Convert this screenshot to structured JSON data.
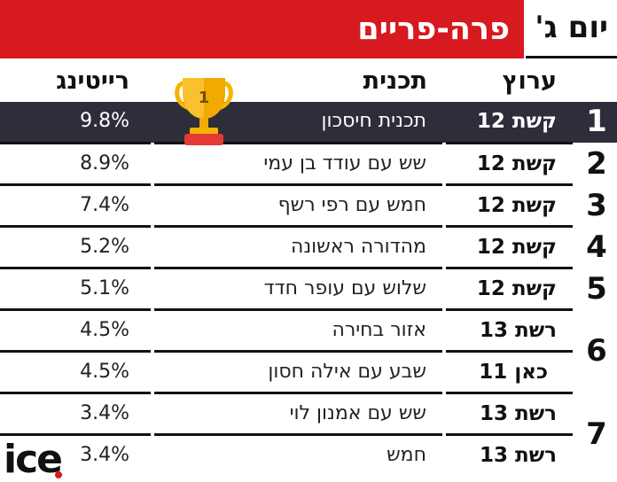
{
  "header": {
    "title": "פרה-פריים",
    "day": "יום ג'"
  },
  "columns": {
    "channel": "ערוץ",
    "program": "תכנית",
    "rating": "רייטינג"
  },
  "trophy": {
    "number": "1"
  },
  "rows": [
    {
      "rank": "1",
      "channel": "קשת 12",
      "program": "תכנית חיסכון",
      "rating": "9.8%"
    },
    {
      "rank": "2",
      "channel": "קשת 12",
      "program": "שש עם עודד בן עמי",
      "rating": "8.9%"
    },
    {
      "rank": "3",
      "channel": "קשת 12",
      "program": "חמש עם רפי רשף",
      "rating": "7.4%"
    },
    {
      "rank": "4",
      "channel": "קשת 12",
      "program": "מהדורה ראשונה",
      "rating": "5.2%"
    },
    {
      "rank": "5",
      "channel": "קשת 12",
      "program": "שלוש עם עופר חדד",
      "rating": "5.1%"
    },
    {
      "rank": "6",
      "channel": "רשת 13",
      "program": "אזור בחירה",
      "rating": "4.5%"
    },
    {
      "rank": "",
      "channel": "כאן 11",
      "program": "שבע עם אילה חסון",
      "rating": "4.5%"
    },
    {
      "rank": "7",
      "channel": "רשת 13",
      "program": "שש עם אמנון לוי",
      "rating": "3.4%"
    },
    {
      "rank": "",
      "channel": "רשת 13",
      "program": "חמש",
      "rating": "3.4%"
    }
  ],
  "logo": {
    "text": "ice"
  },
  "colors": {
    "accent": "#d71920",
    "highlight_row": "#2e2e3a"
  }
}
